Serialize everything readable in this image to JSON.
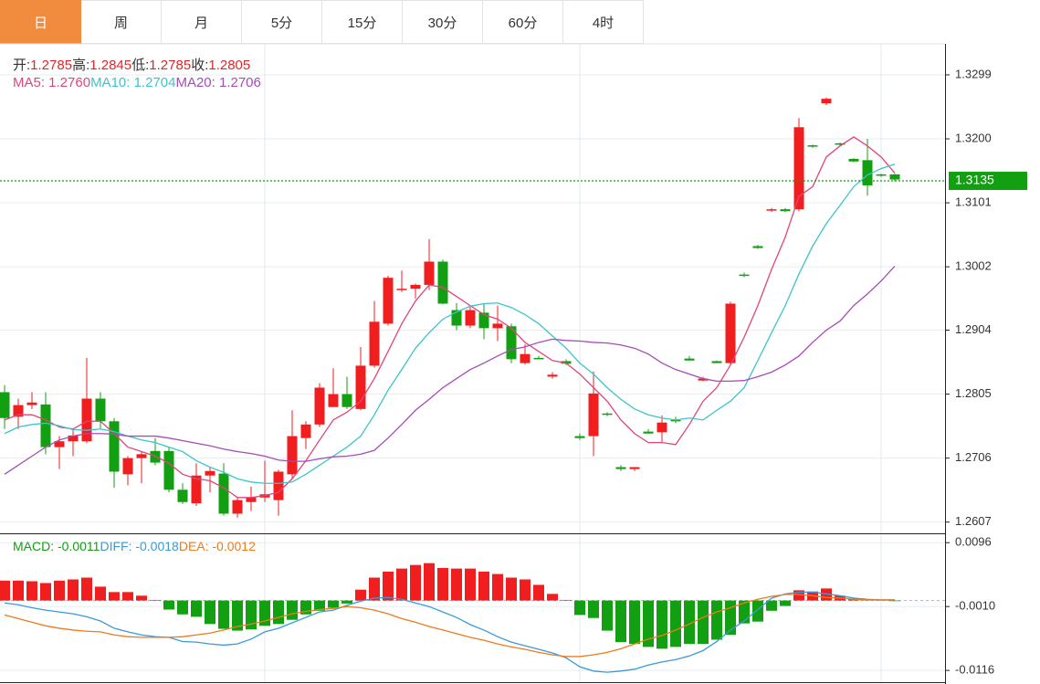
{
  "tabs": {
    "items": [
      "日",
      "周",
      "月",
      "5分",
      "15分",
      "30分",
      "60分",
      "4时"
    ],
    "active": 0
  },
  "chart_data": [
    {
      "type": "candlestick",
      "readout": [
        {
          "label": "开:",
          "value": "1.2785"
        },
        {
          "label": "高:",
          "value": "1.2845"
        },
        {
          "label": "低:",
          "value": "1.2785"
        },
        {
          "label": "收:",
          "value": "1.2805"
        }
      ],
      "open": [
        1.2808,
        1.277,
        1.2788,
        1.2789,
        1.2723,
        1.2732,
        1.2732,
        1.2798,
        1.2763,
        1.2681,
        1.2706,
        1.2717,
        1.2717,
        1.2657,
        1.2636,
        1.2679,
        1.2682,
        1.262,
        1.2638,
        1.2645,
        1.2641,
        1.2681,
        1.2737,
        1.2758,
        1.2785,
        1.2805,
        1.2782,
        1.2849,
        1.2914,
        1.2966,
        1.2968,
        1.2974,
        1.301,
        1.2935,
        1.2911,
        1.2931,
        1.2907,
        1.291,
        1.2853,
        1.2861,
        1.2832,
        1.2856,
        1.274,
        1.274,
        1.2775,
        1.2692,
        1.2689,
        1.2747,
        1.2746,
        1.2765,
        1.286,
        1.2826,
        1.2856,
        1.2853,
        1.299,
        1.3034,
        1.3089,
        1.3091,
        1.3091,
        1.319,
        1.3255,
        1.3193,
        1.3169,
        1.3167,
        1.3145,
        1.3145
      ],
      "high": [
        1.2819,
        1.2798,
        1.2808,
        1.2808,
        1.274,
        1.2751,
        1.2861,
        1.2808,
        1.2768,
        1.2709,
        1.2716,
        1.2737,
        1.2723,
        1.2667,
        1.2698,
        1.2692,
        1.2698,
        1.2645,
        1.2662,
        1.2702,
        1.2688,
        1.278,
        1.2763,
        1.2822,
        1.2845,
        1.2832,
        1.2878,
        1.2949,
        1.2988,
        1.2996,
        1.2976,
        1.3045,
        1.3013,
        1.2946,
        1.2942,
        1.2945,
        1.2942,
        1.2914,
        1.2882,
        1.2864,
        1.2839,
        1.2859,
        1.2744,
        1.284,
        1.2777,
        1.2695,
        1.2692,
        1.2751,
        1.2772,
        1.277,
        1.2864,
        1.2832,
        1.2857,
        1.2948,
        1.2993,
        1.3036,
        1.3093,
        1.3093,
        1.3232,
        1.3191,
        1.3264,
        1.3194,
        1.317,
        1.32,
        1.3146,
        1.3146
      ],
      "low": [
        1.2751,
        1.2751,
        1.2782,
        1.2712,
        1.2689,
        1.2709,
        1.2729,
        1.2751,
        1.266,
        1.2664,
        1.2667,
        1.2695,
        1.2653,
        1.2635,
        1.2632,
        1.2653,
        1.2617,
        1.2614,
        1.2624,
        1.2638,
        1.2617,
        1.2674,
        1.272,
        1.2754,
        1.2785,
        1.2782,
        1.278,
        1.2846,
        1.2911,
        1.2963,
        1.2953,
        1.2966,
        1.2944,
        1.2904,
        1.2907,
        1.289,
        1.2887,
        1.2853,
        1.2851,
        1.2859,
        1.2829,
        1.285,
        1.2734,
        1.2709,
        1.2771,
        1.2686,
        1.2686,
        1.2744,
        1.273,
        1.276,
        1.2857,
        1.2825,
        1.2853,
        1.2851,
        1.2986,
        1.303,
        1.3087,
        1.3087,
        1.3088,
        1.3186,
        1.3252,
        1.319,
        1.3164,
        1.3112,
        1.3141,
        1.3134
      ],
      "close": [
        1.2768,
        1.2788,
        1.2792,
        1.2723,
        1.2732,
        1.2741,
        1.2798,
        1.2763,
        1.2685,
        1.2706,
        1.2712,
        1.2699,
        1.2657,
        1.2638,
        1.2679,
        1.2686,
        1.262,
        1.2641,
        1.2645,
        1.265,
        1.2685,
        1.274,
        1.2758,
        1.2815,
        1.2805,
        1.2785,
        1.2849,
        1.2917,
        1.2985,
        1.2968,
        1.2974,
        1.301,
        1.2945,
        1.2911,
        1.2935,
        1.2907,
        1.2914,
        1.2859,
        1.2867,
        1.286,
        1.2835,
        1.2852,
        1.2737,
        1.2806,
        1.2773,
        1.2689,
        1.2692,
        1.2744,
        1.2761,
        1.2763,
        1.2857,
        1.2829,
        1.2853,
        1.2945,
        1.2988,
        1.3031,
        1.3091,
        1.3088,
        1.3218,
        1.3188,
        1.3262,
        1.3191,
        1.3165,
        1.3128,
        1.3144,
        1.3137
      ],
      "up_color": "#f01e1e",
      "down_color": "#12a012",
      "series": [
        {
          "legend": "MA5: 1.2760",
          "color": "#e0457b",
          "values": [
            1.2765,
            1.2773,
            1.2773,
            1.2765,
            1.2754,
            1.2751,
            1.2763,
            1.2763,
            1.2744,
            1.2723,
            1.2716,
            1.2709,
            1.2698,
            1.2681,
            1.2674,
            1.2671,
            1.266,
            1.2645,
            1.2645,
            1.2648,
            1.2653,
            1.2674,
            1.2702,
            1.2734,
            1.2765,
            1.2777,
            1.2794,
            1.2829,
            1.2871,
            1.2914,
            1.2949,
            1.2974,
            1.297,
            1.2956,
            1.2942,
            1.2928,
            1.2921,
            1.2907,
            1.2885,
            1.2871,
            1.2857,
            1.2853,
            1.2836,
            1.2815,
            1.2794,
            1.2765,
            1.2744,
            1.273,
            1.273,
            1.2727,
            1.2758,
            1.2794,
            1.2815,
            1.285,
            1.2893,
            1.2942,
            1.2998,
            1.3048,
            1.3111,
            1.3126,
            1.3172,
            1.3189,
            1.3203,
            1.3189,
            1.3172,
            1.3147
          ]
        },
        {
          "legend": "MA10: 1.2704",
          "color": "#3cc4cc",
          "values": [
            1.2744,
            1.2754,
            1.2758,
            1.276,
            1.2756,
            1.275,
            1.2749,
            1.2751,
            1.2747,
            1.274,
            1.2734,
            1.273,
            1.2723,
            1.2716,
            1.2702,
            1.2692,
            1.2684,
            1.2674,
            1.2669,
            1.2667,
            1.2667,
            1.2669,
            1.2681,
            1.2695,
            1.2709,
            1.2723,
            1.274,
            1.2773,
            1.2811,
            1.2843,
            1.2876,
            1.29,
            1.2921,
            1.2932,
            1.2941,
            1.2945,
            1.2946,
            1.2939,
            1.2928,
            1.2914,
            1.2895,
            1.2876,
            1.2853,
            1.2836,
            1.2815,
            1.2797,
            1.2782,
            1.2773,
            1.2768,
            1.2765,
            1.2768,
            1.2765,
            1.278,
            1.2794,
            1.2815,
            1.2857,
            1.29,
            1.2942,
            1.2991,
            1.3034,
            1.3069,
            1.3097,
            1.3126,
            1.3144,
            1.3154,
            1.3161
          ]
        },
        {
          "legend": "MA20: 1.2706",
          "color": "#a64cb6",
          "values": [
            1.2681,
            1.2695,
            1.2709,
            1.2723,
            1.2734,
            1.274,
            1.2744,
            1.2744,
            1.2743,
            1.274,
            1.274,
            1.274,
            1.2737,
            1.2733,
            1.2729,
            1.2725,
            1.272,
            1.2716,
            1.2713,
            1.2709,
            1.2703,
            1.2701,
            1.2701,
            1.2705,
            1.2708,
            1.2709,
            1.2712,
            1.2718,
            1.2737,
            1.2758,
            1.278,
            1.2797,
            1.2815,
            1.2829,
            1.2843,
            1.2853,
            1.2864,
            1.2874,
            1.2878,
            1.2885,
            1.289,
            1.2888,
            1.2887,
            1.2885,
            1.2884,
            1.2881,
            1.2876,
            1.2867,
            1.2853,
            1.2843,
            1.2836,
            1.2829,
            1.2825,
            1.2825,
            1.2826,
            1.2832,
            1.2839,
            1.285,
            1.2864,
            1.2885,
            1.2904,
            1.2918,
            1.2942,
            1.296,
            1.298,
            1.3003
          ]
        }
      ],
      "ylim": [
        1.2591,
        1.3347
      ],
      "yticks": [
        1.2607,
        1.2706,
        1.2805,
        1.2904,
        1.3002,
        1.3101,
        {
          "value": 1.32,
          "label": "1.3200"
        },
        1.3299
      ],
      "grid": true,
      "last_price": 1.3135,
      "last_price_color": "#12a012"
    },
    {
      "type": "macd",
      "legend": [
        {
          "text": "MACD: -0.0011",
          "color": "#12a012"
        },
        {
          "text": "DIFF: -0.0018",
          "color": "#3a9ad9"
        },
        {
          "text": "DEA: -0.0012",
          "color": "#ee7a1e"
        }
      ],
      "values": [
        0.0033,
        0.0033,
        0.0032,
        0.0029,
        0.0033,
        0.0035,
        0.0038,
        0.0023,
        0.0014,
        0.0014,
        0.0008,
        0.0001,
        -0.0015,
        -0.0023,
        -0.0027,
        -0.0039,
        -0.0047,
        -0.005,
        -0.0048,
        -0.0042,
        -0.0039,
        -0.0032,
        -0.0023,
        -0.0017,
        -0.0012,
        -0.0005,
        0.0018,
        0.0038,
        0.0048,
        0.0053,
        0.0059,
        0.0062,
        0.0054,
        0.0053,
        0.0053,
        0.0048,
        0.0044,
        0.0038,
        0.0035,
        0.0026,
        0.0011,
        0.0001,
        -0.0024,
        -0.0029,
        -0.005,
        -0.0069,
        -0.0072,
        -0.0077,
        -0.008,
        -0.0077,
        -0.0072,
        -0.0072,
        -0.0065,
        -0.0057,
        -0.0038,
        -0.0035,
        -0.0017,
        -0.0009,
        0.0017,
        0.0015,
        0.002,
        0.0008,
        0.0003,
        0.0002,
        0.0001,
        -0.0001
      ],
      "up_color": "#f01e1e",
      "down_color": "#12a012",
      "series": [
        {
          "color": "#3a9ad9",
          "values": [
            -0.0004,
            -0.0007,
            -0.0012,
            -0.0016,
            -0.0019,
            -0.0022,
            -0.0027,
            -0.0034,
            -0.0046,
            -0.0052,
            -0.0057,
            -0.006,
            -0.0061,
            -0.0068,
            -0.0069,
            -0.0072,
            -0.0074,
            -0.0072,
            -0.0064,
            -0.0052,
            -0.0046,
            -0.0037,
            -0.0028,
            -0.0019,
            -0.0016,
            -0.0008,
            -0.0001,
            0.0004,
            0.0005,
            0.0002,
            -0.0004,
            -0.001,
            -0.0019,
            -0.0028,
            -0.004,
            -0.0049,
            -0.006,
            -0.0069,
            -0.0075,
            -0.0081,
            -0.0087,
            -0.0095,
            -0.011,
            -0.0117,
            -0.0119,
            -0.0117,
            -0.0114,
            -0.0107,
            -0.0102,
            -0.0098,
            -0.0092,
            -0.0083,
            -0.0068,
            -0.0049,
            -0.0034,
            -0.0015,
            0.0004,
            0.0011,
            0.0014,
            0.0014,
            0.0011,
            0.0008,
            0.0004,
            0.0002,
            0.0001,
            0.0001
          ]
        },
        {
          "color": "#ee7a1e",
          "values": [
            -0.0024,
            -0.003,
            -0.0036,
            -0.0042,
            -0.0046,
            -0.0049,
            -0.0051,
            -0.0052,
            -0.0057,
            -0.006,
            -0.0061,
            -0.0061,
            -0.0061,
            -0.006,
            -0.0057,
            -0.0054,
            -0.0049,
            -0.0043,
            -0.0039,
            -0.0034,
            -0.0028,
            -0.0022,
            -0.0018,
            -0.0015,
            -0.0013,
            -0.001,
            -0.0012,
            -0.0016,
            -0.0022,
            -0.003,
            -0.0036,
            -0.0043,
            -0.0049,
            -0.0055,
            -0.0061,
            -0.0066,
            -0.0072,
            -0.0077,
            -0.0081,
            -0.0086,
            -0.009,
            -0.0093,
            -0.0093,
            -0.009,
            -0.0086,
            -0.008,
            -0.0072,
            -0.0064,
            -0.0058,
            -0.0049,
            -0.0039,
            -0.0028,
            -0.0019,
            -0.0012,
            -0.0004,
            0.0002,
            0.0007,
            0.001,
            0.001,
            0.0008,
            0.0005,
            0.0004,
            0.0002,
            0.0001,
            0.0001,
            0.0001
          ]
        }
      ],
      "ylim": [
        -0.0137,
        0.011
      ],
      "yticks": [
        -0.0116,
        {
          "value": -0.001,
          "label": "-0.0010"
        },
        0.0096
      ],
      "grid": true
    }
  ]
}
